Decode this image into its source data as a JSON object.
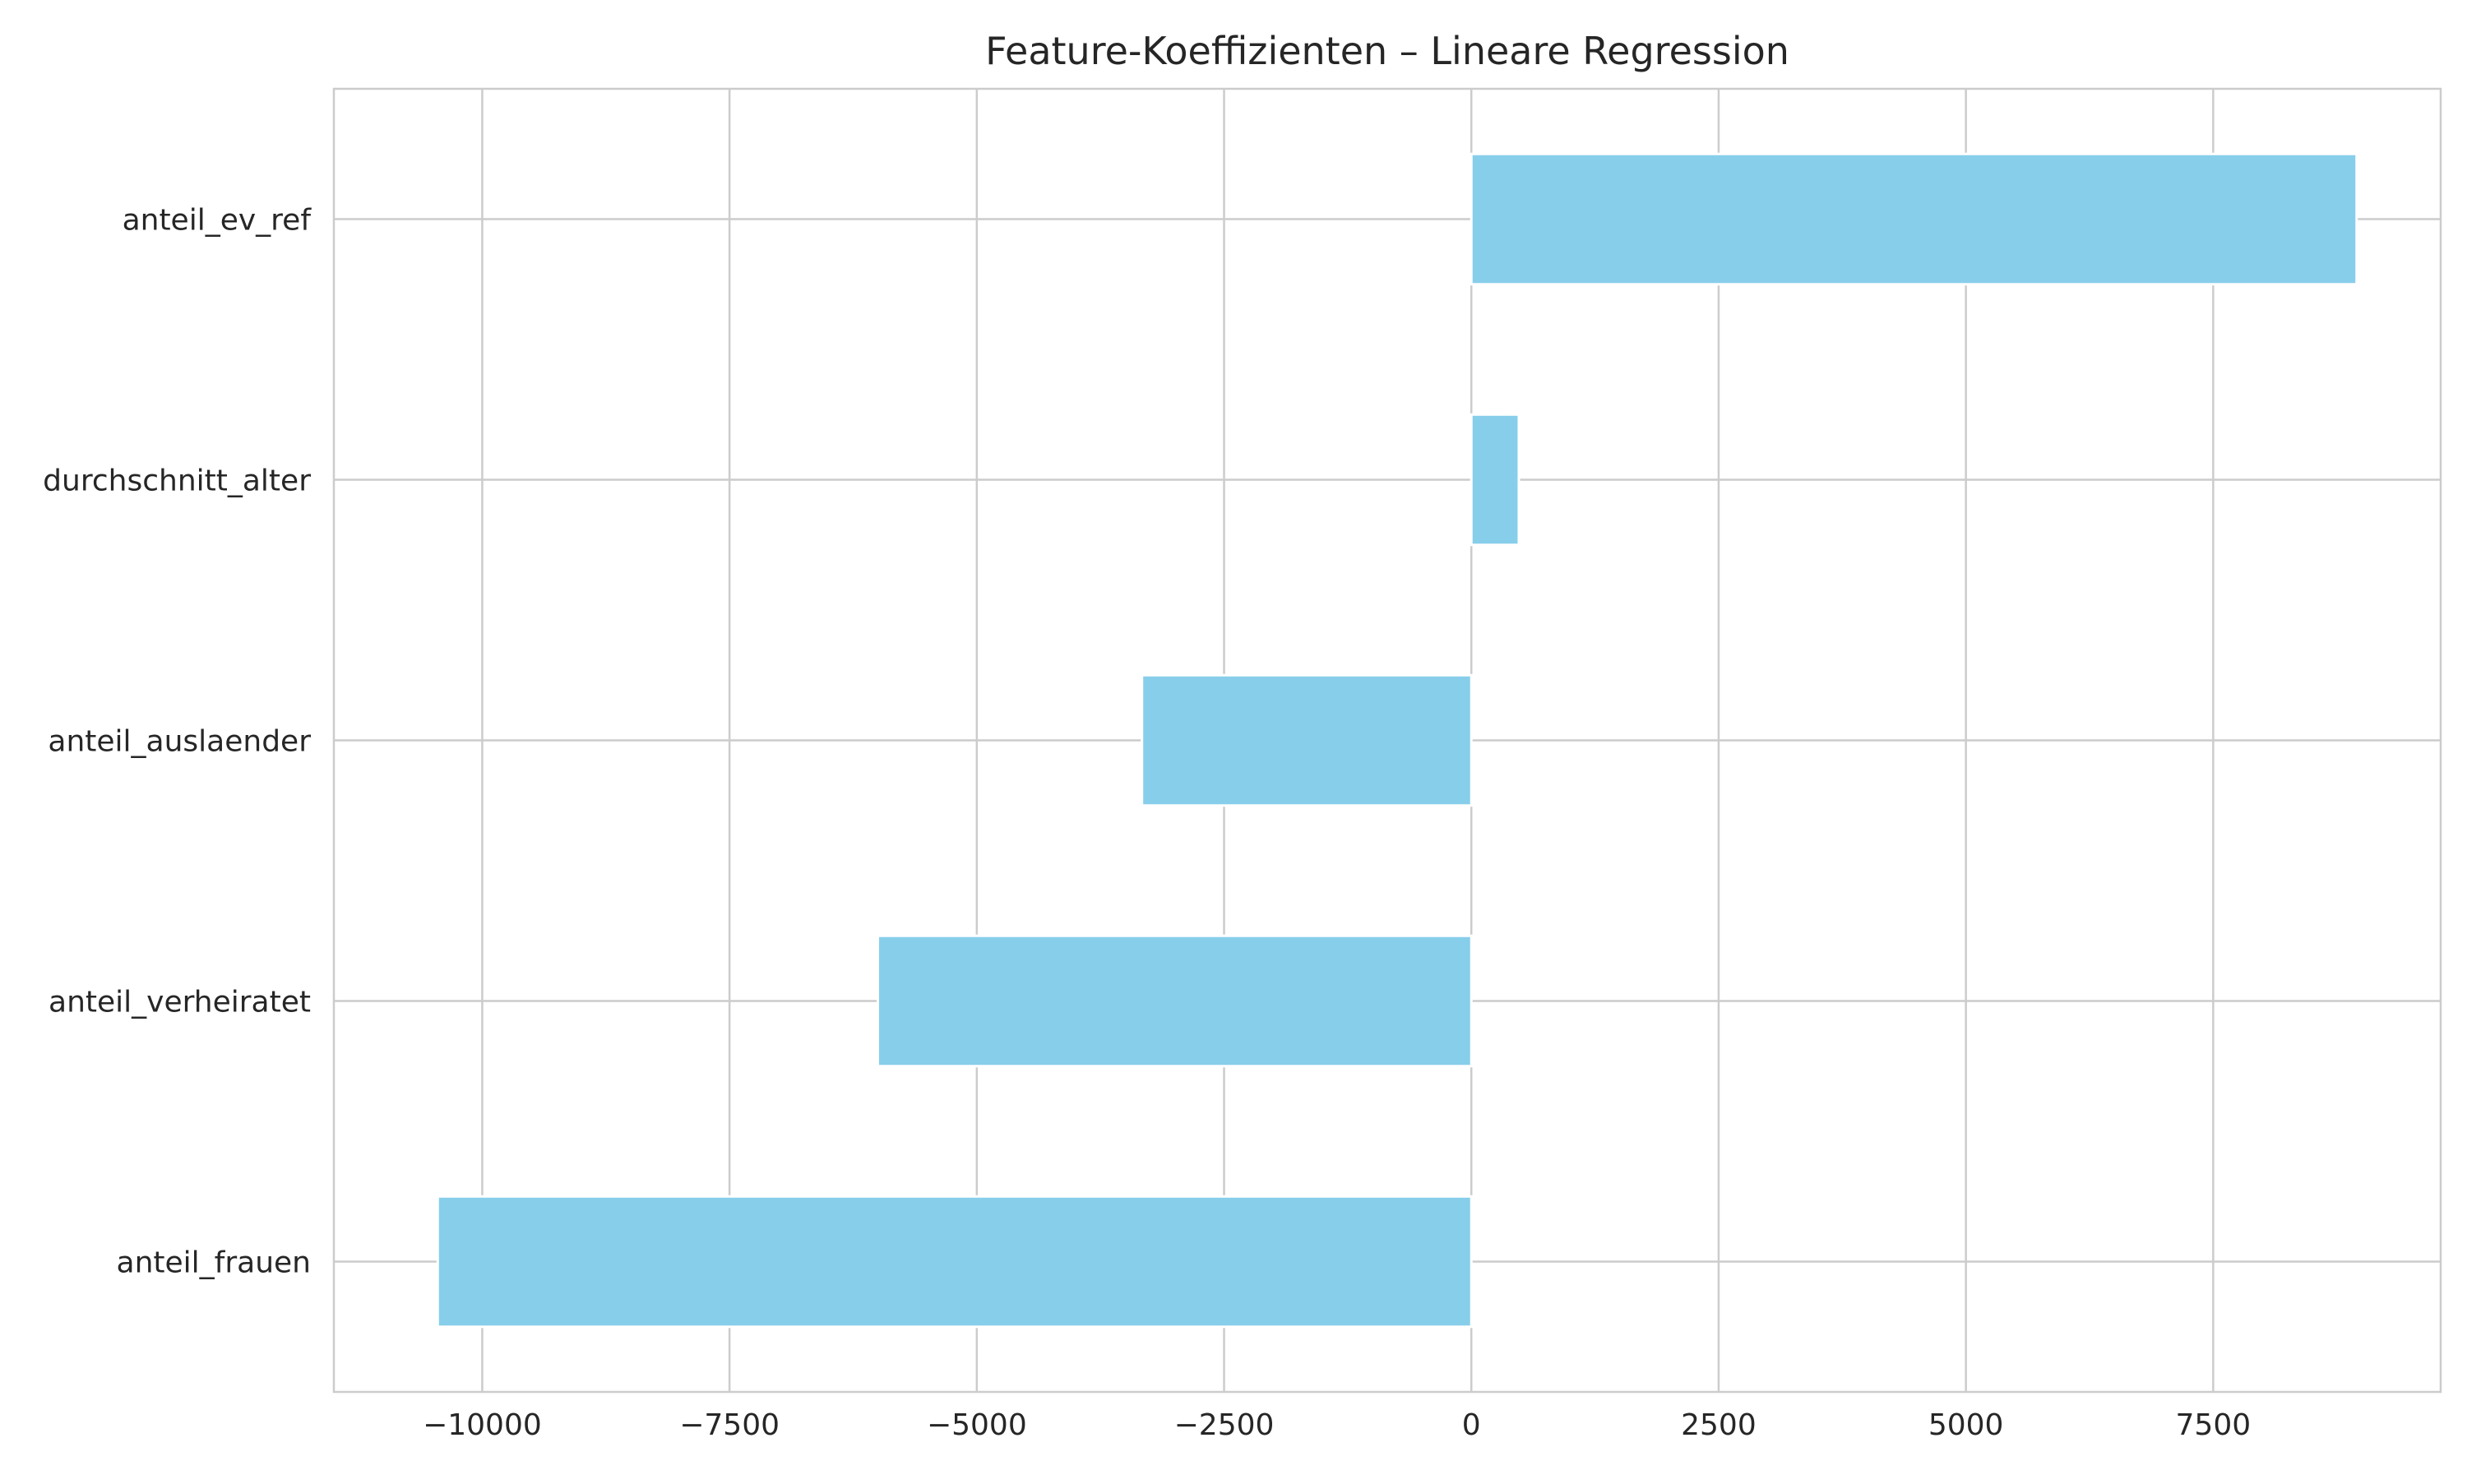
{
  "chart_data": {
    "type": "bar",
    "orientation": "horizontal",
    "title": "Feature-Koeffizienten – Lineare Regression",
    "xlabel": "",
    "ylabel": "",
    "categories": [
      "anteil_ev_ref",
      "durchschnitt_alter",
      "anteil_auslaender",
      "anteil_verheiratet",
      "anteil_frauen"
    ],
    "values": [
      8950,
      480,
      -3330,
      -6000,
      -10450
    ],
    "xlim": [
      -11500,
      9800
    ],
    "xticks": [
      -10000,
      -7500,
      -5000,
      -2500,
      0,
      2500,
      5000,
      7500
    ],
    "xtick_labels": [
      "−10000",
      "−7500",
      "−5000",
      "−2500",
      "0",
      "2500",
      "5000",
      "7500"
    ],
    "grid": true,
    "bar_color": "#87ceeb",
    "grid_color": "#cccccc"
  }
}
